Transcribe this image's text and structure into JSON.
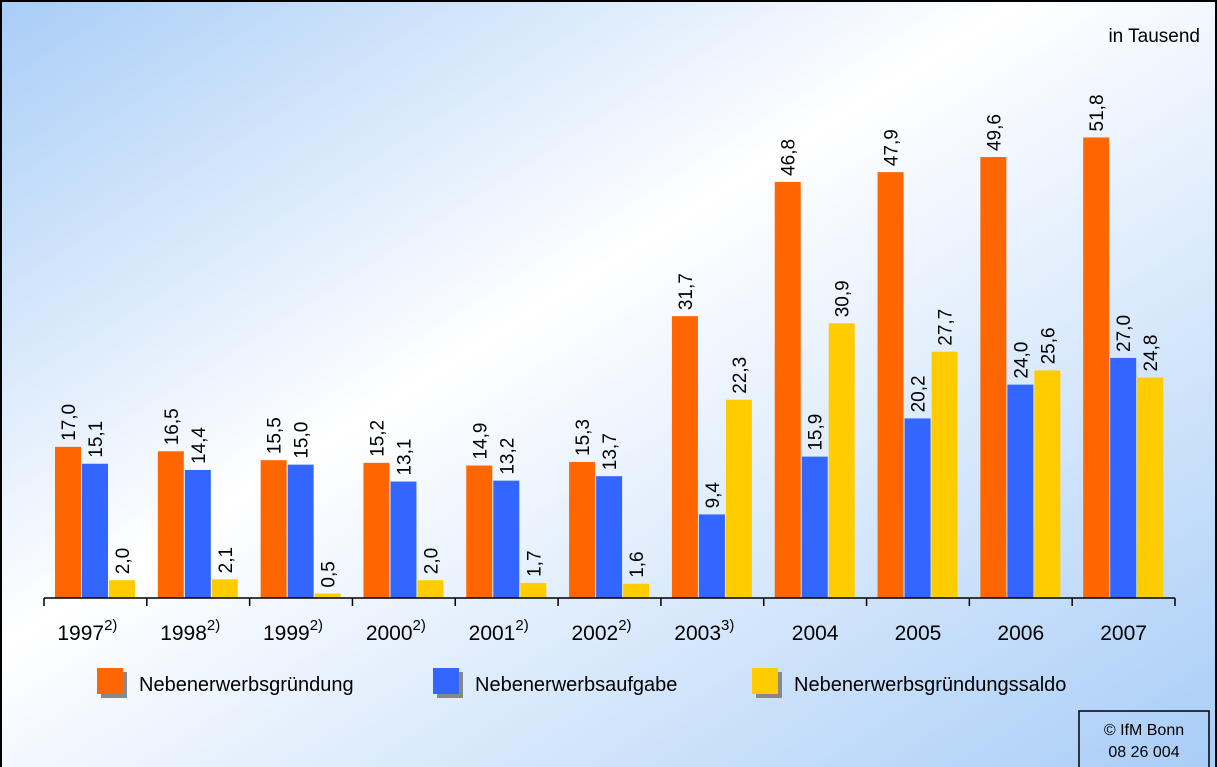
{
  "chart_data": {
    "type": "bar",
    "unit_note": "in Tausend",
    "categories": [
      "1997",
      "1998",
      "1999",
      "2000",
      "2001",
      "2002",
      "2003",
      "2004",
      "2005",
      "2006",
      "2007"
    ],
    "category_notes": [
      "2)",
      "2)",
      "2)",
      "2)",
      "2)",
      "2)",
      "3)",
      null,
      null,
      null,
      null
    ],
    "series": [
      {
        "name": "Nebenerwerbsgründung",
        "color": "#ff6600",
        "values": [
          17.0,
          16.5,
          15.5,
          15.2,
          14.9,
          15.3,
          31.7,
          46.8,
          47.9,
          49.6,
          51.8
        ],
        "value_labels": [
          "17,0",
          "16,5",
          "15,5",
          "15,2",
          "14,9",
          "15,3",
          "31,7",
          "46,8",
          "47,9",
          "49,6",
          "51,8"
        ]
      },
      {
        "name": "Nebenerwerbsaufgabe",
        "color": "#3366ff",
        "values": [
          15.1,
          14.4,
          15.0,
          13.1,
          13.2,
          13.7,
          9.4,
          15.9,
          20.2,
          24.0,
          27.0
        ],
        "value_labels": [
          "15,1",
          "14,4",
          "15,0",
          "13,1",
          "13,2",
          "13,7",
          "9,4",
          "15,9",
          "20,2",
          "24,0",
          "27,0"
        ]
      },
      {
        "name": "Nebenerwerbsgründungssaldo",
        "color": "#ffcc00",
        "values": [
          2.0,
          2.1,
          0.5,
          2.0,
          1.7,
          1.6,
          22.3,
          30.9,
          27.7,
          25.6,
          24.8
        ],
        "value_labels": [
          "2,0",
          "2,1",
          "0,5",
          "2,0",
          "1,7",
          "1,6",
          "22,3",
          "30,9",
          "27,7",
          "25,6",
          "24,8"
        ]
      }
    ],
    "ylim": [
      0,
      55
    ],
    "copyright": [
      "© IfM Bonn",
      "08 26 004"
    ]
  }
}
